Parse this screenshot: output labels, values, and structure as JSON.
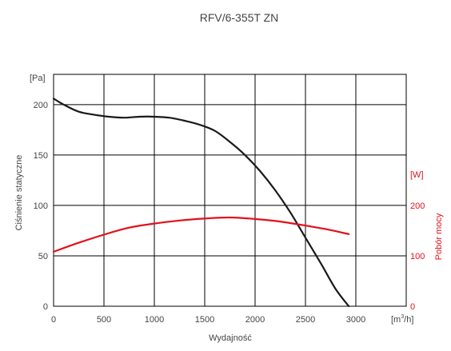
{
  "chart_data": {
    "type": "line",
    "title": "RFV/6-355T ZN",
    "xlabel": "Wydajność",
    "x_unit_base": "[m",
    "x_unit_sup": "3",
    "x_unit_tail": "/h]",
    "ylabel_left": "Ciśnienie statyczne",
    "ylabel_right": "Pobór mocy",
    "y_left_unit": "[Pa]",
    "y_right_unit": "[W]",
    "xlim": [
      0,
      3500
    ],
    "ylim_left": [
      0,
      230
    ],
    "ylim_right": [
      0,
      460
    ],
    "x_ticks": [
      "0",
      "500",
      "1000",
      "1500",
      "2000",
      "2500",
      "3000"
    ],
    "y_left_ticks": [
      "0",
      "50",
      "100",
      "150",
      "200"
    ],
    "y_right_ticks": [
      "0",
      "100",
      "200"
    ],
    "grid": true,
    "colors": {
      "pressure": "#1a1a1a",
      "power": "#e3101b",
      "grid": "#000000",
      "text": "#444444"
    },
    "series": [
      {
        "axis": "left",
        "x": [
          0,
          100,
          250,
          400,
          550,
          700,
          850,
          1000,
          1150,
          1300,
          1450,
          1600,
          1750,
          1900,
          2050,
          2200,
          2350,
          2500,
          2650,
          2800,
          2930
        ],
        "y": [
          206,
          200,
          193,
          190,
          188,
          187,
          188,
          188,
          187,
          184,
          180,
          174,
          163,
          150,
          134,
          115,
          93,
          68,
          43,
          17,
          0
        ]
      },
      {
        "axis": "right",
        "x": [
          0,
          250,
          500,
          750,
          1000,
          1250,
          1500,
          1750,
          2000,
          2250,
          2500,
          2750,
          2930
        ],
        "y": [
          108,
          126,
          142,
          156,
          164,
          170,
          174,
          176,
          173,
          168,
          160,
          151,
          143
        ]
      }
    ]
  }
}
